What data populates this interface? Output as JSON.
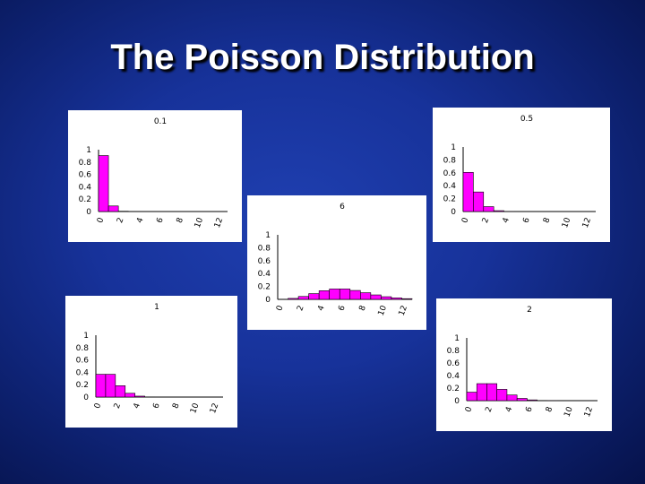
{
  "slide": {
    "title": "The Poisson Distribution"
  },
  "chart_data": [
    {
      "type": "bar",
      "title": "0.1",
      "lambda": 0.1,
      "categories": [
        0,
        1,
        2,
        3,
        4,
        5,
        6,
        7,
        8,
        9,
        10,
        11,
        12
      ],
      "values": [
        0.905,
        0.09,
        0.005,
        0,
        0,
        0,
        0,
        0,
        0,
        0,
        0,
        0,
        0
      ],
      "yticks": [
        "1",
        "0.8",
        "0.6",
        "0.4",
        "0.2",
        "0"
      ],
      "xticks": [
        "0",
        "2",
        "4",
        "6",
        "8",
        "10",
        "12"
      ],
      "ylim": [
        0,
        1
      ],
      "color": "#ff00ff",
      "xlabel": "",
      "ylabel": ""
    },
    {
      "type": "bar",
      "title": "0.5",
      "lambda": 0.5,
      "categories": [
        0,
        1,
        2,
        3,
        4,
        5,
        6,
        7,
        8,
        9,
        10,
        11,
        12
      ],
      "values": [
        0.607,
        0.303,
        0.076,
        0.013,
        0.002,
        0,
        0,
        0,
        0,
        0,
        0,
        0,
        0
      ],
      "yticks": [
        "1",
        "0.8",
        "0.6",
        "0.4",
        "0.2",
        "0"
      ],
      "xticks": [
        "0",
        "2",
        "4",
        "6",
        "8",
        "10",
        "12"
      ],
      "ylim": [
        0,
        1
      ],
      "color": "#ff00ff",
      "xlabel": "",
      "ylabel": ""
    },
    {
      "type": "bar",
      "title": "6",
      "lambda": 6,
      "categories": [
        0,
        1,
        2,
        3,
        4,
        5,
        6,
        7,
        8,
        9,
        10,
        11,
        12
      ],
      "values": [
        0.002,
        0.015,
        0.045,
        0.089,
        0.134,
        0.161,
        0.161,
        0.138,
        0.103,
        0.069,
        0.041,
        0.023,
        0.011
      ],
      "yticks": [
        "1",
        "0.8",
        "0.6",
        "0.4",
        "0.2",
        "0"
      ],
      "xticks": [
        "0",
        "2",
        "4",
        "6",
        "8",
        "10",
        "12"
      ],
      "ylim": [
        0,
        1
      ],
      "color": "#ff00ff",
      "xlabel": "",
      "ylabel": ""
    },
    {
      "type": "bar",
      "title": "1",
      "lambda": 1,
      "categories": [
        0,
        1,
        2,
        3,
        4,
        5,
        6,
        7,
        8,
        9,
        10,
        11,
        12
      ],
      "values": [
        0.368,
        0.368,
        0.184,
        0.061,
        0.015,
        0.003,
        0,
        0,
        0,
        0,
        0,
        0,
        0
      ],
      "yticks": [
        "1",
        "0.8",
        "0.6",
        "0.4",
        "0.2",
        "0"
      ],
      "xticks": [
        "0",
        "2",
        "4",
        "6",
        "8",
        "10",
        "12"
      ],
      "ylim": [
        0,
        1
      ],
      "color": "#ff00ff",
      "xlabel": "",
      "ylabel": ""
    },
    {
      "type": "bar",
      "title": "2",
      "lambda": 2,
      "categories": [
        0,
        1,
        2,
        3,
        4,
        5,
        6,
        7,
        8,
        9,
        10,
        11,
        12
      ],
      "values": [
        0.135,
        0.271,
        0.271,
        0.18,
        0.09,
        0.036,
        0.012,
        0.003,
        0.001,
        0,
        0,
        0,
        0
      ],
      "yticks": [
        "1",
        "0.8",
        "0.6",
        "0.4",
        "0.2",
        "0"
      ],
      "xticks": [
        "0",
        "2",
        "4",
        "6",
        "8",
        "10",
        "12"
      ],
      "ylim": [
        0,
        1
      ],
      "color": "#ff00ff",
      "xlabel": "",
      "ylabel": ""
    }
  ]
}
